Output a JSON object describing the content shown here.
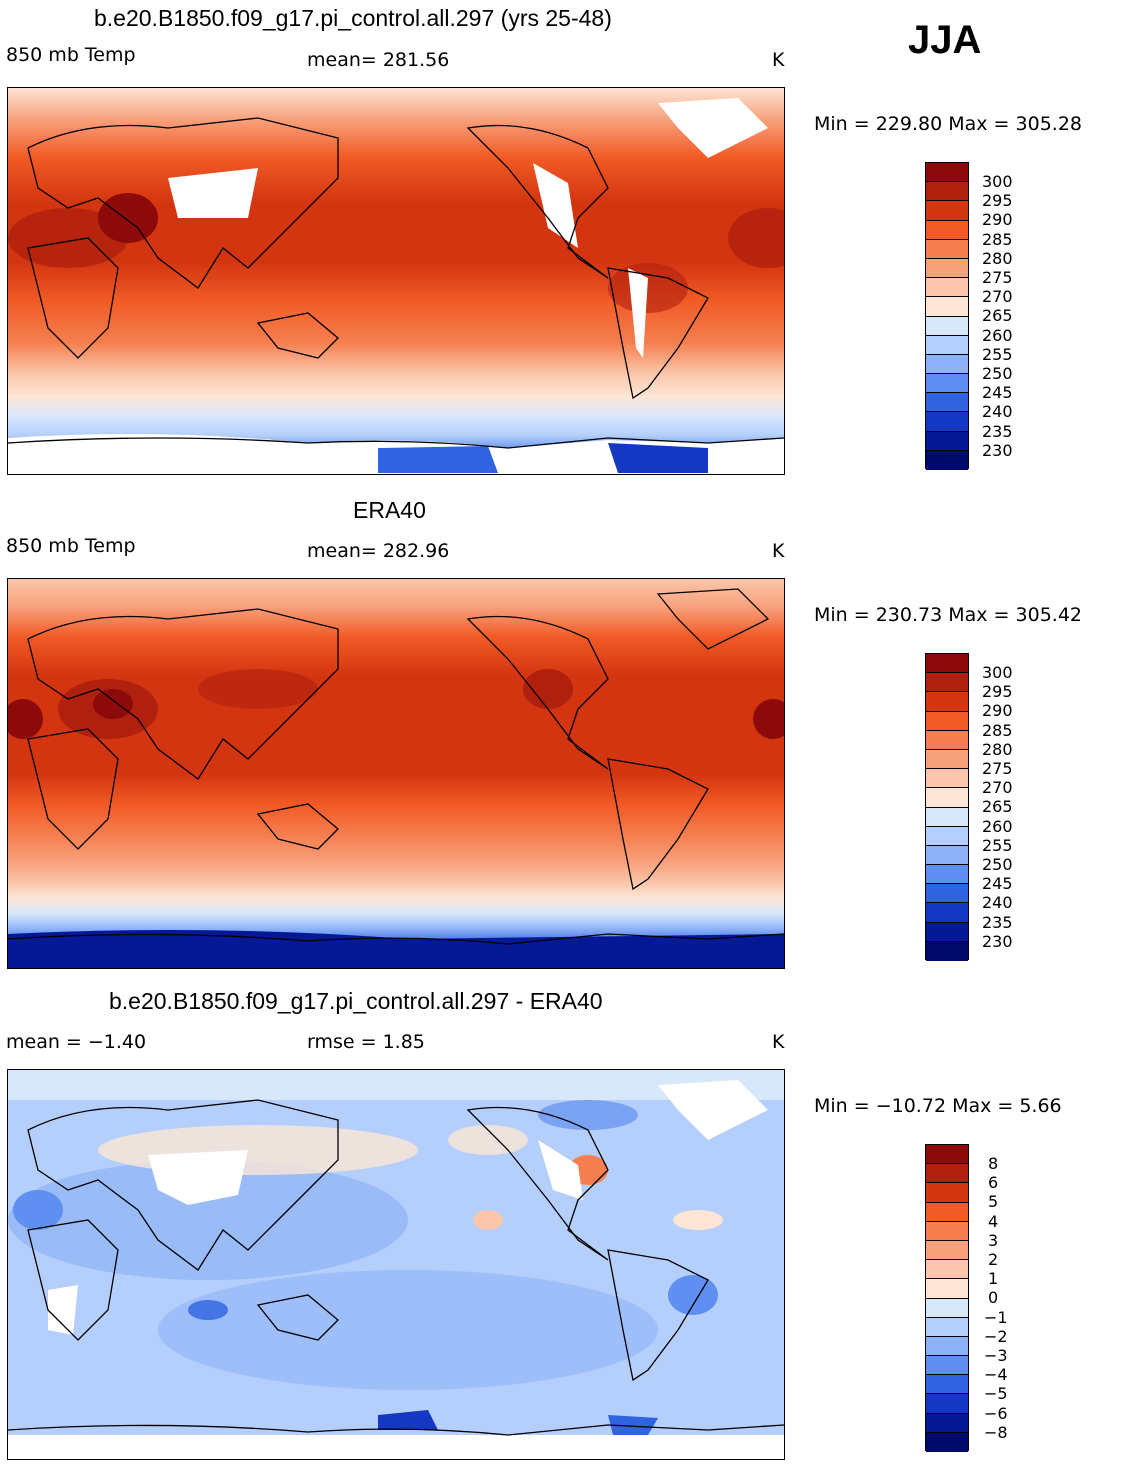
{
  "season": "JJA",
  "panels": [
    {
      "title": "b.e20.B1850.f09_g17.pi_control.all.297 (yrs 25-48)",
      "left_label": "850 mb Temp",
      "center_label": "mean= 281.56",
      "right_label": "K",
      "minmax": "Min = 229.80 Max = 305.28",
      "colorbar_labels": [
        "300",
        "295",
        "290",
        "285",
        "280",
        "275",
        "270",
        "265",
        "260",
        "255",
        "250",
        "245",
        "240",
        "235",
        "230"
      ],
      "colorbar_colors": [
        "#8c0a0a",
        "#b0200e",
        "#d33510",
        "#f15a25",
        "#f57f50",
        "#f8a27d",
        "#fbc6ab",
        "#fde6d6",
        "#d8e8fb",
        "#b4cffb",
        "#8db2f7",
        "#5f8ff0",
        "#2f63e0",
        "#1438c2",
        "#051896",
        "#000a6a"
      ],
      "map_kind": "model"
    },
    {
      "title": "ERA40",
      "left_label": "850 mb Temp",
      "center_label": "mean= 282.96",
      "right_label": "K",
      "minmax": "Min = 230.73 Max = 305.42",
      "colorbar_labels": [
        "300",
        "295",
        "290",
        "285",
        "280",
        "275",
        "270",
        "265",
        "260",
        "255",
        "250",
        "245",
        "240",
        "235",
        "230"
      ],
      "colorbar_colors": [
        "#8c0a0a",
        "#b0200e",
        "#d33510",
        "#f15a25",
        "#f57f50",
        "#f8a27d",
        "#fbc6ab",
        "#fde6d6",
        "#d8e8fb",
        "#b4cffb",
        "#8db2f7",
        "#5f8ff0",
        "#2f63e0",
        "#1438c2",
        "#051896",
        "#000a6a"
      ],
      "map_kind": "obs"
    },
    {
      "title": "b.e20.B1850.f09_g17.pi_control.all.297 - ERA40",
      "left_label": "mean =   −1.40",
      "center_label": "rmse =    1.85",
      "right_label": "K",
      "minmax": "Min = −10.72 Max =    5.66",
      "colorbar_labels": [
        "8",
        "6",
        "5",
        "4",
        "3",
        "2",
        "1",
        "0",
        "−1",
        "−2",
        "−3",
        "−4",
        "−5",
        "−6",
        "−8"
      ],
      "colorbar_colors": [
        "#8c0a0a",
        "#b0200e",
        "#d33510",
        "#f15a25",
        "#f57f50",
        "#f8a27d",
        "#fbc6ab",
        "#fde6d6",
        "#d8e8fb",
        "#b4cffb",
        "#8db2f7",
        "#5f8ff0",
        "#2f63e0",
        "#1438c2",
        "#051896",
        "#000a6a"
      ],
      "map_kind": "diff"
    }
  ]
}
